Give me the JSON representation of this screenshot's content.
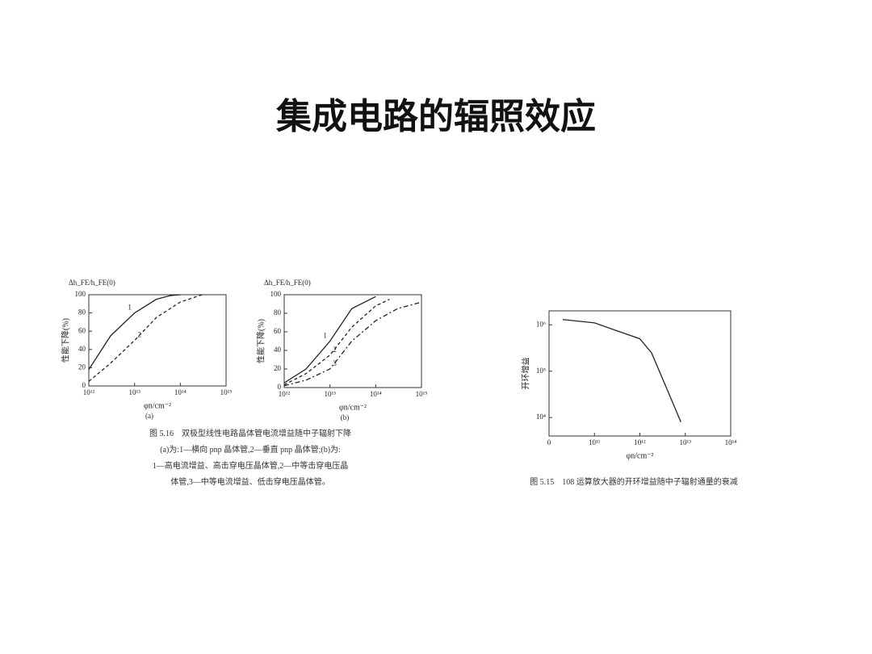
{
  "title": "集成电路的辐照效应",
  "chart_data": [
    {
      "type": "line",
      "yunit": "Δh_FE/h_FE(0)",
      "ylabel": "性能下降(%)",
      "xlabel": "φn/cm⁻²",
      "sublabel": "(a)",
      "xlog": true,
      "xlim": [
        1000000000000.0,
        1000000000000000.0
      ],
      "xticks": [
        {
          "value": 1000000000000.0,
          "label": "10¹²"
        },
        {
          "value": 10000000000000.0,
          "label": "10¹³"
        },
        {
          "value": 100000000000000.0,
          "label": "10¹⁴"
        },
        {
          "value": 1000000000000000.0,
          "label": "10¹⁵"
        }
      ],
      "ylim": [
        0,
        100
      ],
      "yticks": [
        0,
        20,
        40,
        60,
        80,
        100
      ],
      "series": [
        {
          "name": "1",
          "color": "#222",
          "dash": "",
          "x": [
            1000000000000.0,
            3000000000000.0,
            10000000000000.0,
            30000000000000.0,
            60000000000000.0,
            100000000000000.0
          ],
          "values": [
            18,
            55,
            80,
            95,
            99,
            100
          ]
        },
        {
          "name": "2",
          "color": "#222",
          "dash": "4 3",
          "x": [
            1000000000000.0,
            3000000000000.0,
            10000000000000.0,
            30000000000000.0,
            100000000000000.0,
            300000000000000.0
          ],
          "values": [
            5,
            25,
            50,
            75,
            92,
            100
          ]
        }
      ]
    },
    {
      "type": "line",
      "yunit": "Δh_FE/h_FE(0)",
      "ylabel": "性能下降(%)",
      "xlabel": "φn/cm⁻²",
      "sublabel": "(b)",
      "xlog": true,
      "xlim": [
        1000000000000.0,
        1000000000000000.0
      ],
      "xticks": [
        {
          "value": 1000000000000.0,
          "label": "10¹²"
        },
        {
          "value": 10000000000000.0,
          "label": "10¹³"
        },
        {
          "value": 100000000000000.0,
          "label": "10¹⁴"
        },
        {
          "value": 1000000000000000.0,
          "label": "10¹⁵"
        }
      ],
      "ylim": [
        0,
        100
      ],
      "yticks": [
        0,
        20,
        40,
        60,
        80,
        100
      ],
      "series": [
        {
          "name": "1",
          "color": "#222",
          "dash": "",
          "x": [
            1000000000000.0,
            3000000000000.0,
            10000000000000.0,
            30000000000000.0,
            100000000000000.0
          ],
          "values": [
            5,
            20,
            50,
            85,
            98
          ]
        },
        {
          "name": "2",
          "color": "#222",
          "dash": "4 3",
          "x": [
            1000000000000.0,
            3000000000000.0,
            10000000000000.0,
            30000000000000.0,
            100000000000000.0,
            200000000000000.0
          ],
          "values": [
            3,
            15,
            35,
            65,
            88,
            95
          ]
        },
        {
          "name": "3",
          "color": "#222",
          "dash": "6 3 2 3",
          "x": [
            1000000000000.0,
            3000000000000.0,
            10000000000000.0,
            30000000000000.0,
            100000000000000.0,
            300000000000000.0,
            1000000000000000.0
          ],
          "values": [
            2,
            8,
            20,
            50,
            72,
            85,
            92
          ]
        }
      ]
    },
    {
      "type": "line",
      "ylabel": "开环增益",
      "xlabel": "φn/cm⁻²",
      "xlog": true,
      "ylog": true,
      "xlim": [
        10000000000.0,
        100000000000000.0
      ],
      "xticks": [
        {
          "value": 10000000000.0,
          "label": "0"
        },
        {
          "value": 100000000000.0,
          "label": "10¹¹"
        },
        {
          "value": 1000000000000.0,
          "label": "10¹²"
        },
        {
          "value": 10000000000000.0,
          "label": "10¹³"
        },
        {
          "value": 100000000000000.0,
          "label": "10¹⁴"
        }
      ],
      "ylim": [
        4000,
        2000000
      ],
      "yticks": [
        {
          "value": 10000,
          "label": "10⁴"
        },
        {
          "value": 100000,
          "label": "10⁵"
        },
        {
          "value": 1000000,
          "label": "10⁶"
        }
      ],
      "series": [
        {
          "color": "#222",
          "dash": "",
          "x": [
            20000000000.0,
            100000000000.0,
            1000000000000.0,
            1800000000000.0,
            4000000000000.0,
            8000000000000.0
          ],
          "values": [
            1300000,
            1100000,
            500000,
            250000,
            40000,
            8000
          ]
        }
      ]
    }
  ],
  "captions": [
    [
      "图 5.16　双极型线性电路晶体管电流增益随中子辐射下降",
      "(a)为:1—横向 pnp 晶体管,2—垂直 pnp 晶体管;(b)为:",
      "1—高电流增益、高击穿电压晶体管,2—中等击穿电压晶",
      "体管,3—中等电流增益、低击穿电压晶体管。"
    ],
    [
      "图 5.15　108 运算放大器的开环增益随中子辐射通量的衰减"
    ]
  ]
}
